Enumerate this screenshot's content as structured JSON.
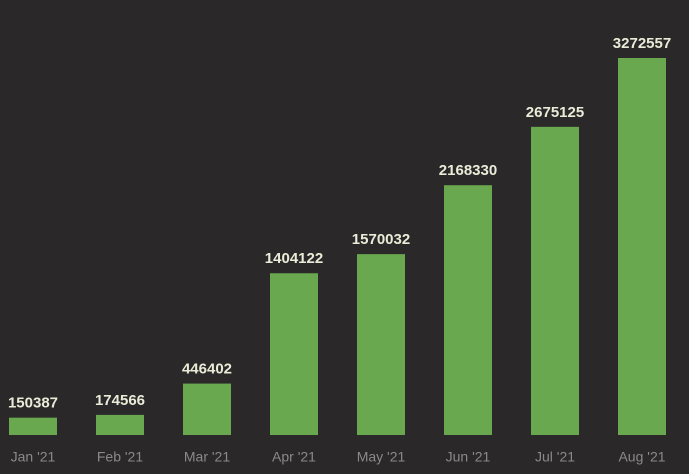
{
  "chart_data": {
    "type": "bar",
    "categories": [
      "Jan '21",
      "Feb '21",
      "Mar '21",
      "Apr '21",
      "May '21",
      "Jun '21",
      "Jul '21",
      "Aug '21"
    ],
    "values": [
      150387,
      174566,
      446402,
      1404122,
      1570032,
      2168330,
      2675125,
      3272557
    ],
    "color": "#6aa84f"
  }
}
